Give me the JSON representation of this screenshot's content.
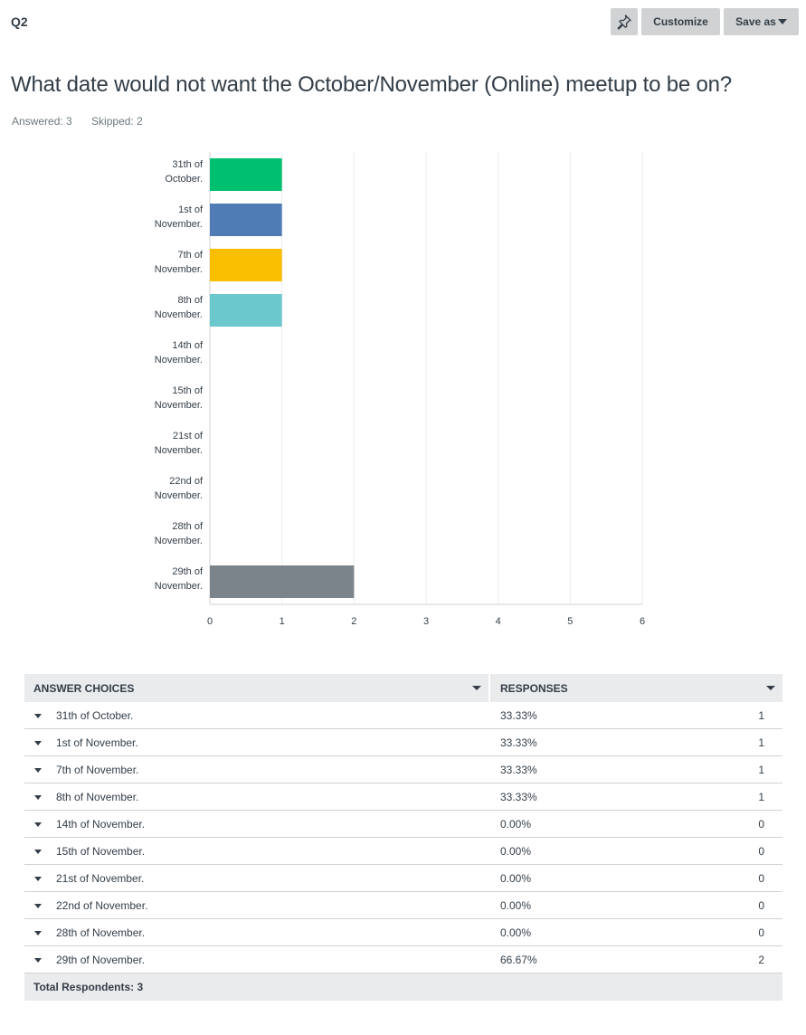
{
  "header": {
    "question_label": "Q2",
    "pin_icon": "pin-icon",
    "customize_label": "Customize",
    "save_as_label": "Save as"
  },
  "question": {
    "title": "What date would not want the October/November (Online) meetup to be on?",
    "answered": "Answered: 3",
    "skipped": "Skipped: 2"
  },
  "chart_data": {
    "type": "bar",
    "orientation": "horizontal",
    "categories": [
      [
        "31th of",
        "October."
      ],
      [
        "1st of",
        "November."
      ],
      [
        "7th of",
        "November."
      ],
      [
        "8th of",
        "November."
      ],
      [
        "14th of",
        "November."
      ],
      [
        "15th of",
        "November."
      ],
      [
        "21st of",
        "November."
      ],
      [
        "22nd of",
        "November."
      ],
      [
        "28th of",
        "November."
      ],
      [
        "29th of",
        "November."
      ]
    ],
    "values": [
      1,
      1,
      1,
      1,
      0,
      0,
      0,
      0,
      0,
      2
    ],
    "colors": [
      "#00bf6f",
      "#507cb6",
      "#f9be00",
      "#6bc8cd",
      "#ff8b4f",
      "#7d5e90",
      "#d25f90",
      "#a0a0a0",
      "#c9a46b",
      "#7b848b"
    ],
    "xlim": [
      0,
      6
    ],
    "xticks": [
      "0",
      "1",
      "2",
      "3",
      "4",
      "5",
      "6"
    ],
    "grid": true,
    "legend": "none"
  },
  "table": {
    "col_choices": "ANSWER CHOICES",
    "col_responses": "RESPONSES",
    "rows": [
      {
        "label": "31th of October.",
        "pct": "33.33%",
        "count": "1"
      },
      {
        "label": "1st of November.",
        "pct": "33.33%",
        "count": "1"
      },
      {
        "label": "7th of November.",
        "pct": "33.33%",
        "count": "1"
      },
      {
        "label": "8th of November.",
        "pct": "33.33%",
        "count": "1"
      },
      {
        "label": "14th of November.",
        "pct": "0.00%",
        "count": "0"
      },
      {
        "label": "15th of November.",
        "pct": "0.00%",
        "count": "0"
      },
      {
        "label": "21st of November.",
        "pct": "0.00%",
        "count": "0"
      },
      {
        "label": "22nd of November.",
        "pct": "0.00%",
        "count": "0"
      },
      {
        "label": "28th of November.",
        "pct": "0.00%",
        "count": "0"
      },
      {
        "label": "29th of November.",
        "pct": "66.67%",
        "count": "2"
      }
    ],
    "total": "Total Respondents: 3"
  }
}
